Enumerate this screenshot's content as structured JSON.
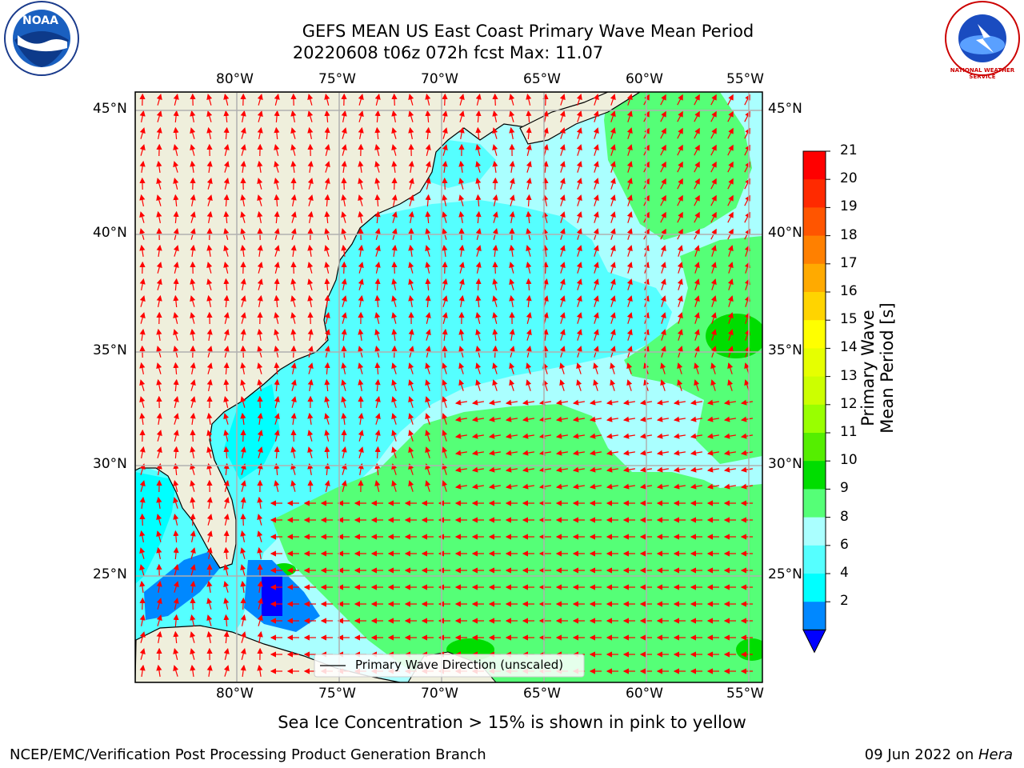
{
  "title": {
    "line1": "GEFS MEAN US East Coast Primary Wave Mean Period",
    "line2": "20220608 t06z 072h fcst   Max: 11.07"
  },
  "axes": {
    "lon_labels": [
      "80°W",
      "75°W",
      "70°W",
      "65°W",
      "60°W",
      "55°W"
    ],
    "lat_labels": [
      "45°N",
      "40°N",
      "35°N",
      "30°N",
      "25°N"
    ]
  },
  "legend": {
    "label": "Primary Wave Direction (unscaled)"
  },
  "colorbar": {
    "label": "Primary Wave Mean Period [s]",
    "ticks": [
      "21",
      "20",
      "19",
      "18",
      "17",
      "16",
      "15",
      "14",
      "13",
      "12",
      "11",
      "10",
      "9",
      "8",
      "6",
      "4",
      "2"
    ],
    "colors": [
      "#ff0000",
      "#ff2a00",
      "#ff5500",
      "#ff8000",
      "#ffaa00",
      "#ffd400",
      "#ffff00",
      "#e6ff00",
      "#ccff00",
      "#99ff00",
      "#55ee00",
      "#00dd00",
      "#55ff77",
      "#aaffff",
      "#55ffff",
      "#00ffff",
      "#0088ff"
    ],
    "under_color": "#0000ff"
  },
  "colors": {
    "land": "#efefdc",
    "period_4_6": "#00ffff",
    "period_6_8": "#55ffff",
    "period_8_9": "#aaffff",
    "period_9_10": "#55ff77",
    "period_10_11": "#00dd00",
    "period_2_4": "#0088ff",
    "period_lt2": "#0000ff",
    "arrow": "#ff0000",
    "grid": "#b0b0b0"
  },
  "caption": "Sea Ice Concentration > 15% is shown in pink to yellow",
  "footer": {
    "left": "NCEP/EMC/Verification Post Processing Product Generation Branch",
    "right_date": "09 Jun 2022 on ",
    "right_host": "Hera"
  },
  "logos": {
    "noaa_text": "NOAA",
    "nws_text": "NATIONAL WEATHER SERVICE"
  }
}
